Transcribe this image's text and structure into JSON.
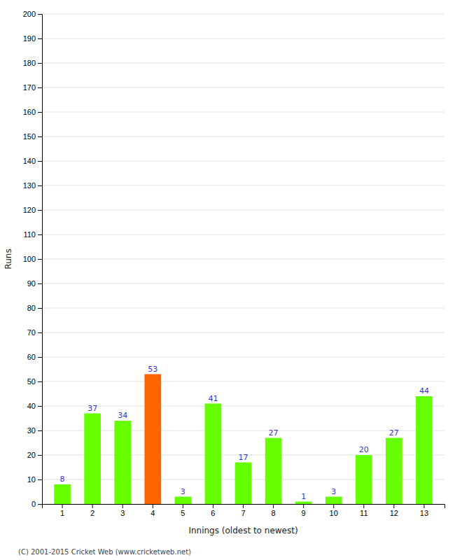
{
  "chart_data": {
    "type": "bar",
    "xlabel": "Innings (oldest to newest)",
    "ylabel": "Runs",
    "categories": [
      1,
      2,
      3,
      4,
      5,
      6,
      7,
      8,
      9,
      10,
      11,
      12,
      13
    ],
    "values": [
      8,
      37,
      34,
      53,
      3,
      41,
      17,
      27,
      1,
      3,
      20,
      27,
      44
    ],
    "colors": [
      "#66ff00",
      "#66ff00",
      "#66ff00",
      "#ff6600",
      "#66ff00",
      "#66ff00",
      "#66ff00",
      "#66ff00",
      "#66ff00",
      "#66ff00",
      "#66ff00",
      "#66ff00",
      "#66ff00"
    ],
    "ylim": [
      0,
      200
    ],
    "yticks": [
      0,
      10,
      20,
      30,
      40,
      50,
      60,
      70,
      80,
      90,
      100,
      110,
      120,
      130,
      140,
      150,
      160,
      170,
      180,
      190,
      200
    ],
    "grid": true,
    "data_labels": true,
    "footer": "(C) 2001-2015 Cricket Web (www.cricketweb.net)"
  }
}
